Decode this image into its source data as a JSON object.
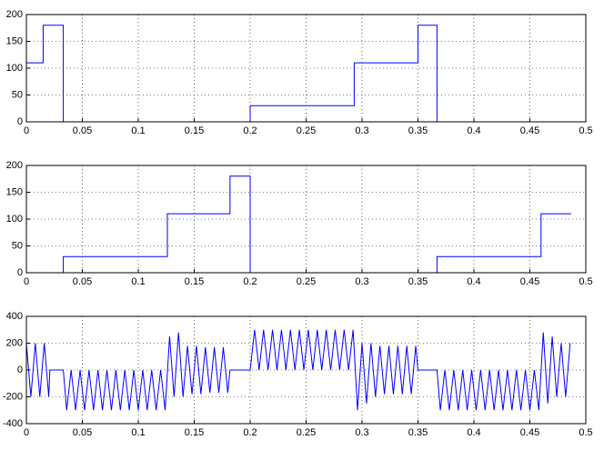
{
  "chart_data": [
    {
      "type": "line",
      "color": "#0000ff",
      "grid": true,
      "x": [
        0,
        0.015,
        0.015,
        0.033,
        0.033,
        0.2,
        0.2,
        0.293,
        0.293,
        0.35,
        0.35,
        0.367,
        0.367,
        0.5
      ],
      "values": [
        110,
        110,
        180,
        180,
        0,
        0,
        30,
        30,
        110,
        110,
        180,
        180,
        0,
        0
      ],
      "xlim": [
        0,
        0.5
      ],
      "xticks": [
        0,
        0.05,
        0.1,
        0.15,
        0.2,
        0.25,
        0.3,
        0.35,
        0.4,
        0.45,
        0.5
      ],
      "ylim": [
        0,
        200
      ],
      "yticks": [
        0,
        50,
        100,
        150,
        200
      ]
    },
    {
      "type": "line",
      "color": "#0000ff",
      "grid": true,
      "x": [
        0,
        0.033,
        0.033,
        0.126,
        0.126,
        0.182,
        0.182,
        0.2,
        0.2,
        0.367,
        0.367,
        0.46,
        0.46,
        0.487
      ],
      "values": [
        0,
        0,
        30,
        30,
        110,
        110,
        180,
        180,
        0,
        0,
        30,
        30,
        110,
        110
      ],
      "xlim": [
        0,
        0.5
      ],
      "xticks": [
        0,
        0.05,
        0.1,
        0.15,
        0.2,
        0.25,
        0.3,
        0.35,
        0.4,
        0.45,
        0.5
      ],
      "ylim": [
        0,
        200
      ],
      "yticks": [
        0,
        50,
        100,
        150,
        200
      ]
    },
    {
      "type": "line",
      "color": "#0000ff",
      "grid": true,
      "x": [
        0,
        0.004,
        0.008,
        0.012,
        0.016,
        0.02,
        0.021,
        0.033,
        0.036,
        0.04,
        0.044,
        0.048,
        0.052,
        0.056,
        0.06,
        0.064,
        0.068,
        0.072,
        0.076,
        0.08,
        0.084,
        0.088,
        0.092,
        0.096,
        0.1,
        0.104,
        0.108,
        0.112,
        0.116,
        0.12,
        0.124,
        0.128,
        0.132,
        0.136,
        0.14,
        0.144,
        0.148,
        0.152,
        0.156,
        0.16,
        0.164,
        0.168,
        0.172,
        0.176,
        0.18,
        0.182,
        0.2,
        0.204,
        0.208,
        0.212,
        0.216,
        0.22,
        0.224,
        0.228,
        0.232,
        0.236,
        0.24,
        0.244,
        0.248,
        0.252,
        0.256,
        0.26,
        0.264,
        0.268,
        0.272,
        0.276,
        0.28,
        0.284,
        0.288,
        0.292,
        0.296,
        0.3,
        0.304,
        0.308,
        0.312,
        0.316,
        0.32,
        0.324,
        0.328,
        0.332,
        0.336,
        0.34,
        0.344,
        0.348,
        0.35,
        0.367,
        0.37,
        0.374,
        0.378,
        0.382,
        0.386,
        0.39,
        0.394,
        0.398,
        0.402,
        0.406,
        0.41,
        0.414,
        0.418,
        0.422,
        0.426,
        0.43,
        0.434,
        0.438,
        0.442,
        0.446,
        0.45,
        0.454,
        0.458,
        0.462,
        0.466,
        0.47,
        0.474,
        0.478,
        0.482,
        0.486
      ],
      "values": [
        200,
        -200,
        200,
        -200,
        200,
        -200,
        0,
        0,
        -300,
        0,
        -300,
        0,
        -300,
        0,
        -300,
        0,
        -300,
        0,
        -300,
        0,
        -300,
        0,
        -300,
        0,
        -300,
        0,
        -300,
        0,
        -300,
        0,
        -300,
        250,
        -200,
        280,
        -200,
        180,
        -180,
        180,
        -180,
        170,
        -170,
        170,
        -170,
        170,
        -170,
        0,
        0,
        300,
        0,
        300,
        0,
        300,
        0,
        300,
        0,
        300,
        0,
        300,
        0,
        300,
        0,
        300,
        0,
        300,
        0,
        300,
        0,
        300,
        0,
        300,
        -300,
        200,
        -250,
        200,
        -200,
        180,
        -180,
        180,
        -180,
        180,
        -180,
        180,
        -180,
        180,
        0,
        0,
        -300,
        0,
        -300,
        0,
        -300,
        0,
        -300,
        0,
        -300,
        0,
        -300,
        0,
        -300,
        0,
        -300,
        0,
        -300,
        0,
        -300,
        0,
        -300,
        0,
        -300,
        280,
        -250,
        250,
        -200,
        200,
        -200,
        200
      ],
      "xlim": [
        0,
        0.5
      ],
      "xticks": [
        0,
        0.05,
        0.1,
        0.15,
        0.2,
        0.25,
        0.3,
        0.35,
        0.4,
        0.45,
        0.5
      ],
      "ylim": [
        -400,
        400
      ],
      "yticks": [
        -400,
        -200,
        0,
        200,
        400
      ]
    }
  ]
}
